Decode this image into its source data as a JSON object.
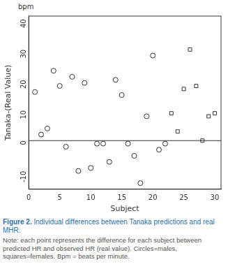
{
  "chart_data": {
    "type": "scatter",
    "y_unit": "bpm",
    "xlabel": "Subject",
    "ylabel": "Tanaka-(Real Value)",
    "caption_label": "Figure 2.",
    "caption": "Individual differences between Tanaka predictions and real MHR.",
    "note": "Note: each point represents the difference for each subject between predicted HR and observed HR (real value). Circles=males, squares=females. Bpm = beats per minute.",
    "xlim": [
      0,
      31
    ],
    "xticks": [
      0,
      5,
      10,
      15,
      20,
      25,
      30
    ],
    "ylim": [
      -16,
      41
    ],
    "yticks": [
      -10,
      0,
      10,
      20,
      30,
      40
    ],
    "grid": false,
    "reference_line": 0,
    "series": [
      {
        "marker": "circle",
        "color": "#333333",
        "x": [
          1,
          2,
          3,
          4,
          5,
          6,
          7,
          8,
          9,
          10,
          11,
          12,
          13,
          14,
          15,
          16,
          17,
          18,
          19,
          20,
          21,
          22
        ],
        "values": [
          16,
          2,
          4,
          23,
          18,
          -2,
          21,
          -10,
          19,
          -9,
          -1,
          -1,
          -7,
          20,
          15,
          -1,
          -5,
          -14,
          8,
          28,
          -3,
          -1
        ]
      },
      {
        "marker": "square",
        "color": "#333333",
        "x": [
          23,
          24,
          25,
          26,
          27,
          28,
          29,
          30
        ],
        "values": [
          9,
          3,
          17,
          30,
          18,
          0,
          8,
          9
        ]
      }
    ]
  }
}
